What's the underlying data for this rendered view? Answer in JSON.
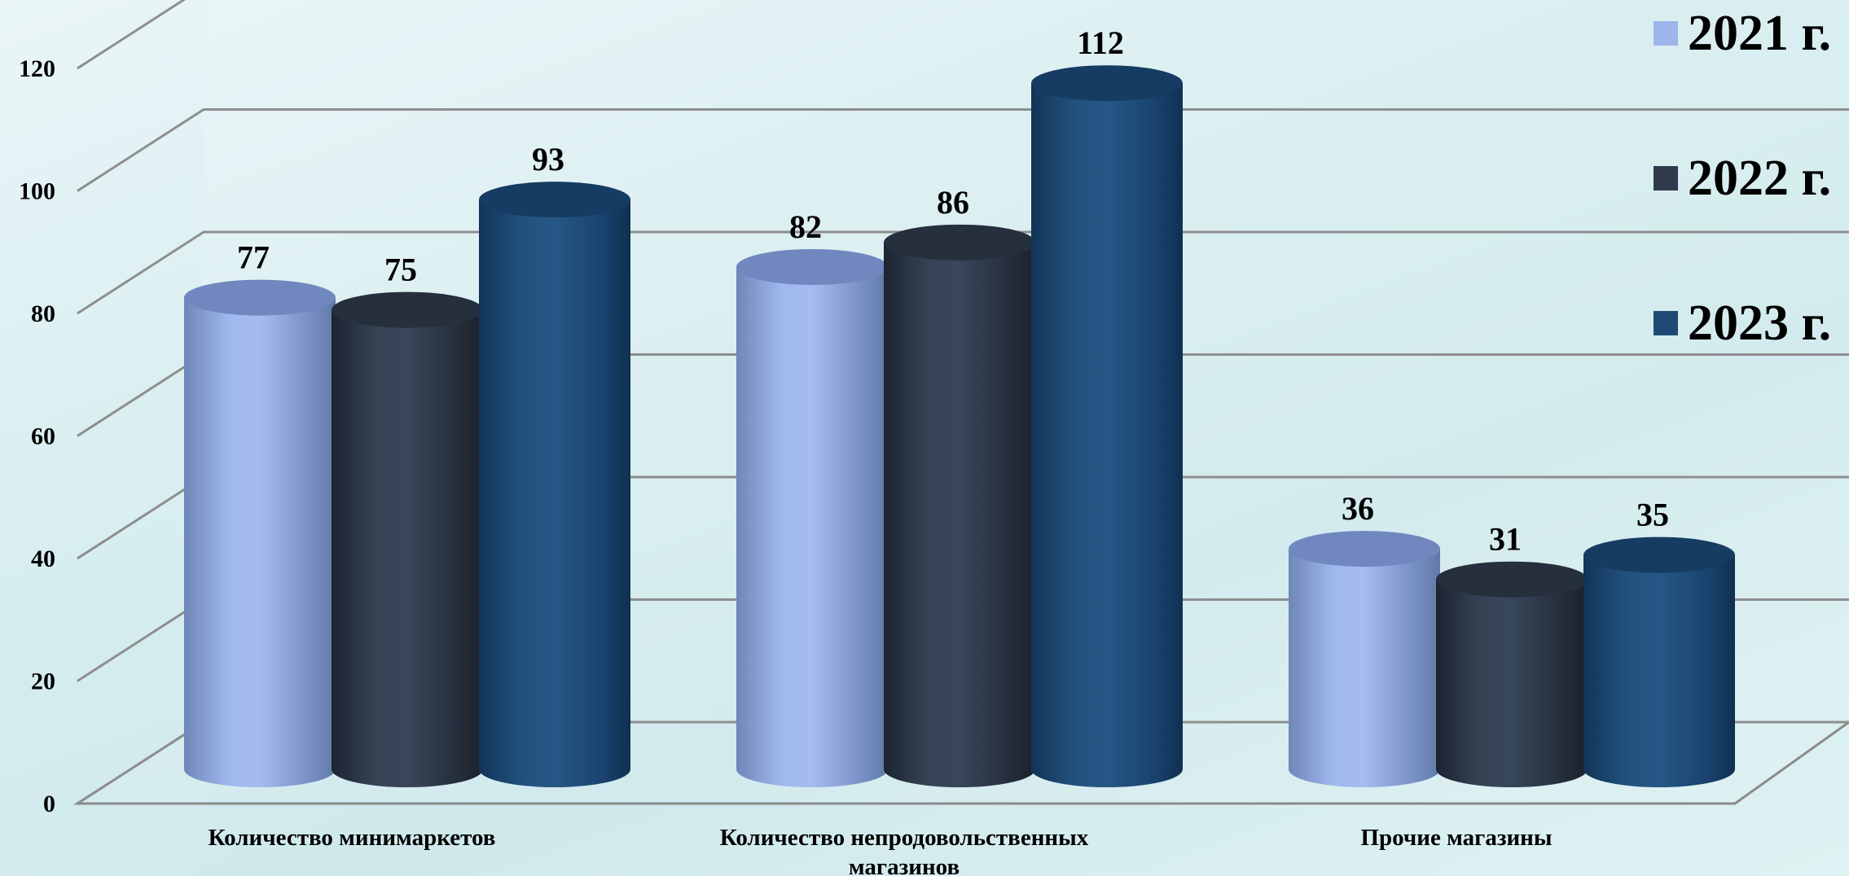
{
  "chart_data": {
    "type": "bar",
    "style": "3d-cylinder",
    "categories": [
      "Количество минимаркетов",
      "Количество непродовольственных магазинов",
      "Прочие магазины"
    ],
    "category_lines": [
      [
        "Количество минимаркетов"
      ],
      [
        "Количество непродовольственных",
        "магазинов"
      ],
      [
        "Прочие магазины"
      ]
    ],
    "series": [
      {
        "name": "2021 г.",
        "values": [
          77,
          82,
          36
        ],
        "color": "#9db5ea"
      },
      {
        "name": "2022 г.",
        "values": [
          75,
          86,
          31
        ],
        "color": "#2f3b4d"
      },
      {
        "name": "2023 г.",
        "values": [
          93,
          112,
          35
        ],
        "color": "#1e4a75"
      }
    ],
    "ylim": [
      0,
      120
    ],
    "yticks": [
      0,
      20,
      40,
      60,
      80,
      100,
      120
    ],
    "grid": true,
    "legend_position": "top-right",
    "title": "",
    "xlabel": "",
    "ylabel": ""
  },
  "legend": {
    "items": [
      {
        "label": "2021 г.",
        "color": "#9db5ea"
      },
      {
        "label": "2022 г.",
        "color": "#2f3b4d"
      },
      {
        "label": "2023 г.",
        "color": "#1e4a75"
      }
    ]
  }
}
